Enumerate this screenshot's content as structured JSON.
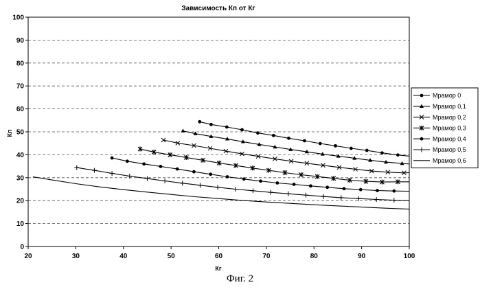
{
  "caption": "Фиг. 2",
  "chart_data": {
    "type": "line",
    "title": "Зависимость Кп от Кг",
    "xlabel": "Кг",
    "ylabel": "Кп",
    "xlim": [
      20,
      100
    ],
    "ylim": [
      0,
      100
    ],
    "xticks": [
      20,
      30,
      40,
      50,
      60,
      70,
      80,
      90,
      100
    ],
    "yticks": [
      0,
      10,
      20,
      30,
      40,
      50,
      60,
      70,
      80,
      90,
      100
    ],
    "grid": "horizontal dashed",
    "legend_position": "right",
    "series": [
      {
        "name": "Мрамор 0",
        "marker": "circle",
        "x": [
          56,
          58.4,
          61.7,
          64.9,
          68.2,
          71.5,
          74.7,
          78,
          81.3,
          84.5,
          87.8,
          91.1,
          94.3,
          97.6,
          100
        ],
        "y": [
          54.4,
          53.2,
          52.1,
          50.9,
          49.5,
          48.4,
          47.2,
          46.1,
          44.9,
          43.9,
          42.8,
          41.9,
          40.8,
          39.9,
          39.4
        ]
      },
      {
        "name": "Мрамор 0,1",
        "marker": "triangle",
        "x": [
          52.5,
          55.1,
          58.4,
          61.8,
          65.1,
          68.5,
          71.8,
          75.1,
          78.5,
          81.8,
          85.1,
          88.5,
          91.8,
          95.1,
          98.5,
          100
        ],
        "y": [
          50.4,
          49.2,
          48,
          46.9,
          45.7,
          44.5,
          43.4,
          42.3,
          41.3,
          40.3,
          39.4,
          38.5,
          37.6,
          36.8,
          36.2,
          36
        ]
      },
      {
        "name": "Мрамор 0,2",
        "marker": "x",
        "x": [
          48.4,
          51.4,
          54.8,
          58.2,
          61.5,
          64.9,
          68.3,
          71.8,
          75.2,
          78.5,
          81.9,
          85.3,
          88.7,
          92.1,
          95.5,
          98.9,
          100
        ],
        "y": [
          46.4,
          45.1,
          44,
          42.8,
          41.6,
          40.4,
          39.3,
          38.2,
          37.2,
          36.3,
          35.4,
          34.5,
          33.7,
          32.9,
          32.4,
          32.1,
          32.2
        ]
      },
      {
        "name": "Мрамор 0,3",
        "marker": "asterisk",
        "x": [
          43.5,
          46.4,
          49.8,
          53.2,
          56.7,
          60.1,
          63.6,
          67.1,
          70.5,
          73.9,
          77.3,
          80.7,
          84.1,
          87.5,
          90.9,
          94.3,
          97.6,
          100
        ],
        "y": [
          42.5,
          41.2,
          40,
          38.8,
          37.6,
          36.4,
          35.3,
          34.2,
          33.2,
          32.2,
          31.3,
          30.5,
          29.7,
          28.9,
          28.4,
          28.1,
          28.2,
          28.2
        ]
      },
      {
        "name": "Мрамор 0,4",
        "marker": "circle",
        "x": [
          37.6,
          40.8,
          44.3,
          47.8,
          51.3,
          54.8,
          58.3,
          61.8,
          65.3,
          68.8,
          72.3,
          75.8,
          79.3,
          82.8,
          86.3,
          89.8,
          93.3,
          96.8,
          100
        ],
        "y": [
          38.6,
          37.2,
          36,
          34.9,
          33.8,
          32.6,
          31.5,
          30.4,
          29.4,
          28.5,
          27.7,
          27.1,
          26.4,
          25.8,
          25.2,
          24.8,
          24.4,
          24.2,
          24.1
        ]
      },
      {
        "name": "Мрамор 0,5",
        "marker": "plus",
        "x": [
          30.2,
          33.9,
          37.6,
          41.3,
          45,
          48.7,
          52.4,
          56.1,
          59.8,
          63.5,
          67.2,
          70.9,
          74.6,
          78.3,
          82,
          85.7,
          89.4,
          93.1,
          96.8,
          100
        ],
        "y": [
          34.4,
          33.2,
          31.9,
          30.7,
          29.6,
          28.6,
          27.6,
          26.7,
          25.8,
          25,
          24.3,
          23.6,
          23,
          22.4,
          21.8,
          21.3,
          20.9,
          20.5,
          20.2,
          20
        ]
      },
      {
        "name": "Мрамор 0,6",
        "marker": "none",
        "x": [
          21,
          25,
          30,
          35,
          40,
          45,
          50,
          55,
          60,
          65,
          70,
          75,
          80,
          85,
          90,
          95,
          100
        ],
        "y": [
          30.4,
          29,
          27.4,
          26,
          24.8,
          23.7,
          22.7,
          21.7,
          20.9,
          20.1,
          19.4,
          18.8,
          18.2,
          17.7,
          17.2,
          16.7,
          16.3
        ]
      }
    ]
  }
}
